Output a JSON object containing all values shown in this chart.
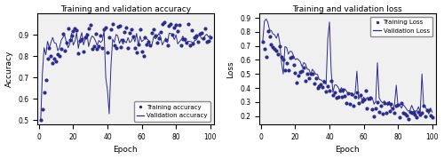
{
  "title_acc": "Training and validation accuracy",
  "title_loss": "Training and validation loss",
  "xlabel": "Epoch",
  "ylabel_acc": "Accuracy",
  "ylabel_loss": "Loss",
  "legend_train_acc": "Training accuracy",
  "legend_val_acc": "Validation accuracy",
  "legend_train_loss": "Training Loss",
  "legend_val_loss": "Validation Loss",
  "color": "#2b2b8c",
  "ylim_acc": [
    0.48,
    1.0
  ],
  "ylim_loss": [
    0.14,
    0.93
  ],
  "yticks_acc": [
    0.5,
    0.6,
    0.7,
    0.8,
    0.9
  ],
  "yticks_loss": [
    0.2,
    0.3,
    0.4,
    0.5,
    0.6,
    0.7,
    0.8,
    0.9
  ],
  "xticks": [
    0,
    20,
    40,
    60,
    80,
    100
  ],
  "xlim": [
    -1,
    102
  ],
  "figsize": [
    5.0,
    1.79
  ],
  "dpi": 100,
  "bg_color": "#f0f0f0"
}
